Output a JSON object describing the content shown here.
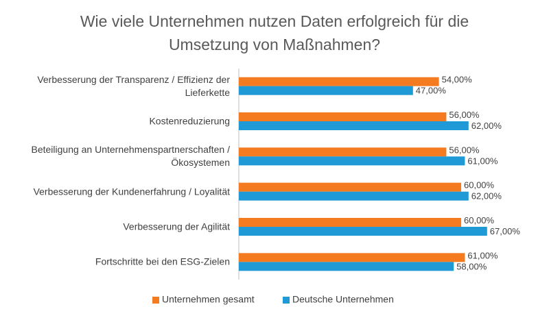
{
  "chart_data": {
    "type": "barh",
    "title": "Wie viele Unternehmen nutzen Daten erfolgreich für die Umsetzung von Maßnahmen?",
    "categories": [
      "Verbesserung der Transparenz / Effizienz der Lieferkette",
      "Kostenreduzierung",
      "Beteiligung an Unternehmenspartnerschaften / Ökosystemen",
      "Verbesserung der Kundenerfahrung / Loyalität",
      "Verbesserung der Agilität",
      "Fortschritte bei den ESG-Zielen"
    ],
    "series": [
      {
        "name": "Unternehmen gesamt",
        "color": "#f47b20",
        "values": [
          54,
          56,
          56,
          60,
          60,
          61
        ],
        "value_labels": [
          "54,00%",
          "56,00%",
          "56,00%",
          "60,00%",
          "60,00%",
          "61,00%"
        ]
      },
      {
        "name": "Deutsche Unternehmen",
        "color": "#1f9ad6",
        "values": [
          47,
          62,
          61,
          62,
          67,
          58
        ],
        "value_labels": [
          "47,00%",
          "62,00%",
          "61,00%",
          "62,00%",
          "67,00%",
          "58,00%"
        ]
      }
    ],
    "xlim": [
      0,
      80
    ],
    "legend": "bottom"
  }
}
